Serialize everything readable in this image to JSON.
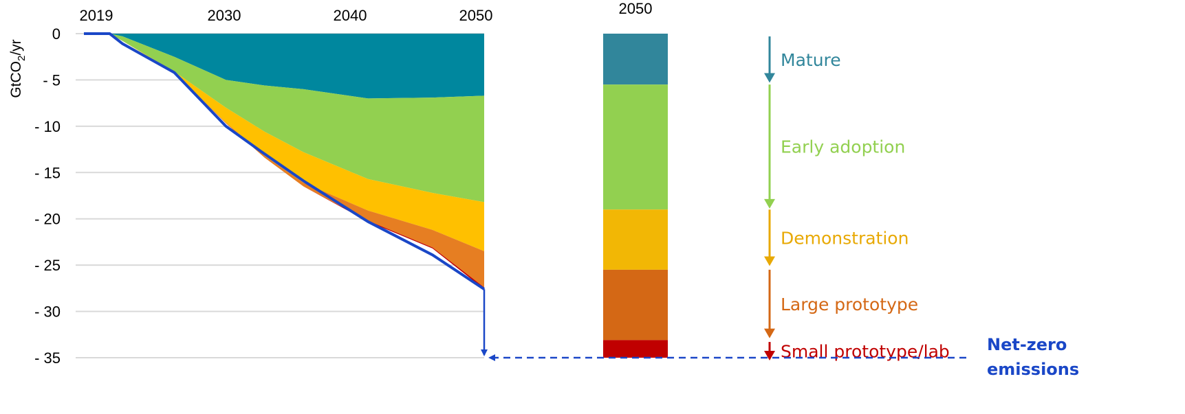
{
  "chart_data": {
    "type": "area",
    "x_ticks": [
      "2019",
      "2030",
      "2040",
      "2050"
    ],
    "y_ticks": [
      "0",
      "- 5",
      "- 10",
      "- 15",
      "- 20",
      "- 25",
      "- 30",
      "- 35"
    ],
    "ylabel_main": "GtCO",
    "ylabel_sub": "2",
    "ylabel_tail": "/yr",
    "ylim": [
      -35,
      0
    ],
    "xlim": [
      2019,
      2050
    ],
    "grid": true,
    "x": [
      2019,
      2021,
      2022,
      2026,
      2030,
      2033,
      2036,
      2041,
      2046,
      2050
    ],
    "series": [
      {
        "name": "Mature",
        "color": "#00879e",
        "values": [
          0,
          0,
          -0.3,
          -2.5,
          -5.0,
          -5.6,
          -6.0,
          -7.0,
          -6.9,
          -6.7
        ]
      },
      {
        "name": "Early adoption",
        "color": "#92d050",
        "values": [
          0,
          0,
          -0.5,
          -1.6,
          -3.0,
          -5.0,
          -6.8,
          -8.7,
          -10.3,
          -11.5
        ]
      },
      {
        "name": "Demonstration",
        "color": "#ffc000",
        "values": [
          0,
          0,
          0,
          -0.1,
          -1.6,
          -2.6,
          -3.3,
          -3.4,
          -4.0,
          -5.3
        ]
      },
      {
        "name": "Large prototype",
        "color": "#e67e22",
        "values": [
          0,
          0,
          0,
          0,
          -0.1,
          -0.2,
          -0.4,
          -1.1,
          -1.9,
          -3.9
        ]
      },
      {
        "name": "Small prototype/lab",
        "color": "#c00000",
        "values": [
          0,
          0,
          0,
          0,
          0,
          0,
          0,
          -0.1,
          -0.1,
          -0.2
        ]
      }
    ],
    "total_line": {
      "color": "#1a47c7",
      "values": [
        0,
        0,
        -1.1,
        -4.2,
        -10.0,
        -13.0,
        -15.9,
        -20.3,
        -23.9,
        -27.6
      ]
    },
    "bar_2050": {
      "label": "2050",
      "segments": [
        {
          "name": "Mature",
          "value": 5.5,
          "color": "#31869b"
        },
        {
          "name": "Early adoption",
          "value": 13.5,
          "color": "#92d050"
        },
        {
          "name": "Demonstration",
          "value": 6.5,
          "color": "#f2b705"
        },
        {
          "name": "Large prototype",
          "value": 7.6,
          "color": "#d46815"
        },
        {
          "name": "Small prototype/lab",
          "value": 1.9,
          "color": "#c00000"
        }
      ]
    },
    "stage_labels": [
      {
        "text": "Mature",
        "color": "#31869b",
        "from": 0.3,
        "to": 5.3
      },
      {
        "text": "Early adoption",
        "color": "#92d050",
        "from": 5.5,
        "to": 18.9
      },
      {
        "text": "Demonstration",
        "color": "#e8a905",
        "from": 19.0,
        "to": 25.1
      },
      {
        "text": "Large prototype",
        "color": "#d46815",
        "from": 25.5,
        "to": 32.9
      },
      {
        "text": "Small prototype/lab",
        "color": "#c00000",
        "from": 33.3,
        "to": 35.3
      }
    ],
    "net_zero_value": -35,
    "net_zero_line1": "Net-zero",
    "net_zero_line2": "emissions"
  }
}
